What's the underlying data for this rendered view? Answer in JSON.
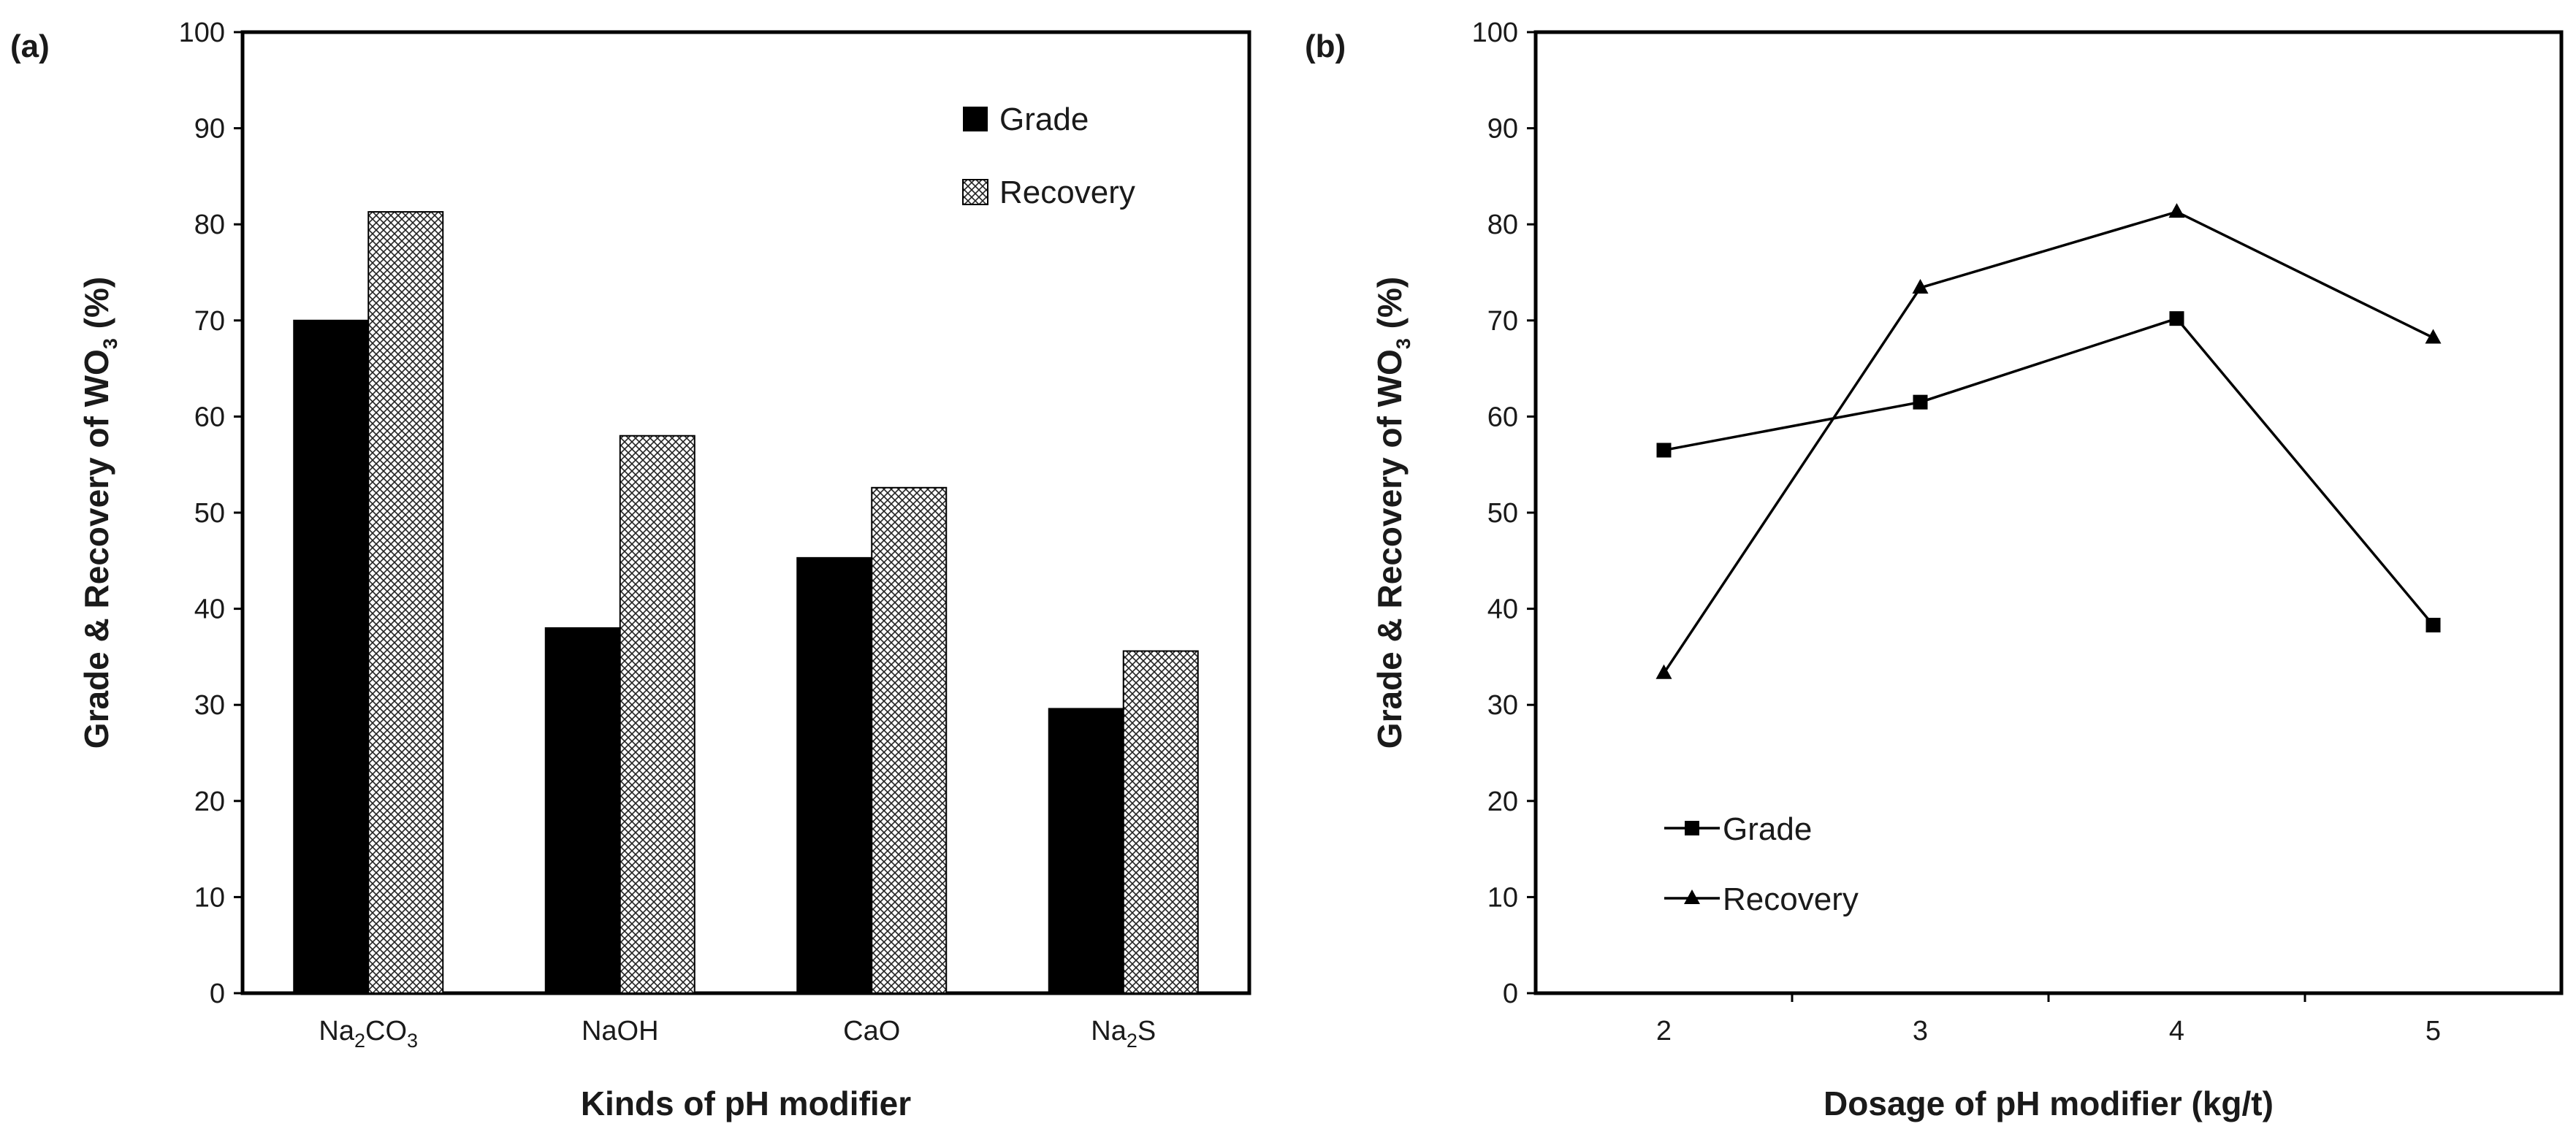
{
  "chart_data": [
    {
      "panel_label": "(a)",
      "type": "bar",
      "title": "",
      "categories": [
        {
          "base": "Na",
          "sub1": "2",
          "mid": "CO",
          "sub2": "3"
        },
        {
          "base": "NaOH",
          "sub1": "",
          "mid": "",
          "sub2": ""
        },
        {
          "base": "CaO",
          "sub1": "",
          "mid": "",
          "sub2": ""
        },
        {
          "base": "Na",
          "sub1": "2",
          "mid": "S",
          "sub2": ""
        }
      ],
      "series": [
        {
          "name": "Grade",
          "values": [
            70,
            38,
            45.3,
            29.6
          ],
          "fill": "solid",
          "color": "#000000"
        },
        {
          "name": "Recovery",
          "values": [
            81.3,
            58,
            52.6,
            35.6
          ],
          "fill": "crosshatch",
          "color": "#ffffff"
        }
      ],
      "xlabel": "Kinds of pH modifier",
      "ylabel": {
        "pre": "Grade & Recovery of WO",
        "sub": "3",
        "post": " (%)"
      },
      "ylim": [
        0,
        100
      ],
      "yticks": [
        0,
        10,
        20,
        30,
        40,
        50,
        60,
        70,
        80,
        90,
        100
      ],
      "legend": "top-right",
      "grid": false
    },
    {
      "panel_label": "(b)",
      "type": "line",
      "title": "",
      "x": [
        2,
        3,
        4,
        5
      ],
      "series": [
        {
          "name": "Grade",
          "marker": "square",
          "values": [
            56.5,
            61.5,
            70.2,
            38.3
          ],
          "color": "#000000"
        },
        {
          "name": "Recovery",
          "marker": "triangle",
          "values": [
            33.3,
            73.4,
            81.3,
            68.2
          ],
          "color": "#000000"
        }
      ],
      "xlabel": "Dosage of pH modifier (kg/t)",
      "ylabel": {
        "pre": "Grade & Recovery of WO",
        "sub": "3",
        "post": " (%)"
      },
      "ylim": [
        0,
        100
      ],
      "yticks": [
        0,
        10,
        20,
        30,
        40,
        50,
        60,
        70,
        80,
        90,
        100
      ],
      "legend": "bottom-left",
      "grid": false
    }
  ]
}
